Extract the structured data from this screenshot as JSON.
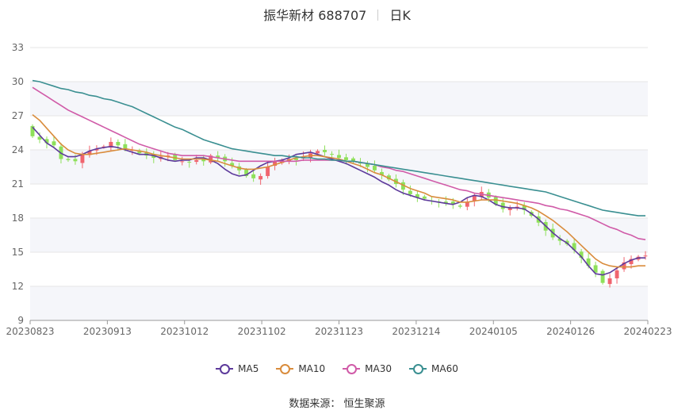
{
  "header": {
    "name_code": "振华新材 688707",
    "period": "日K"
  },
  "source": "数据来源： 恒生聚源",
  "colors": {
    "up": "#f0646e",
    "down": "#8ee05a",
    "MA5": "#5d3a9b",
    "MA10": "#d98c3c",
    "MA30": "#d05ba8",
    "MA60": "#3a8f91",
    "grid": "#e6e6e6",
    "band": "#f5f6fa"
  },
  "chart_data": {
    "type": "candlestick",
    "title": "振华新材 688707 日K",
    "ylim": [
      9,
      33
    ],
    "yticks": [
      9,
      12,
      15,
      18,
      21,
      24,
      27,
      30,
      33
    ],
    "xticks": [
      "20230823",
      "20230913",
      "20231012",
      "20231102",
      "20231123",
      "20231214",
      "20240105",
      "20240126",
      "20240223"
    ],
    "x_range": [
      "20230823",
      "20240223"
    ],
    "legend": [
      "MA5",
      "MA10",
      "MA30",
      "MA60"
    ],
    "legend_position": "bottom",
    "approx_close": [
      25.2,
      24.9,
      24.6,
      24.4,
      23.2,
      23.1,
      23.0,
      23.6,
      23.9,
      24.1,
      24.3,
      24.7,
      24.4,
      24.1,
      24.0,
      23.7,
      23.5,
      23.3,
      23.4,
      23.5,
      23.1,
      23.0,
      22.9,
      23.1,
      23.0,
      23.5,
      23.3,
      23.0,
      22.6,
      22.2,
      21.7,
      21.5,
      21.7,
      22.5,
      23.0,
      23.1,
      23.2,
      23.1,
      23.4,
      23.7,
      23.9,
      23.8,
      23.6,
      23.3,
      23.1,
      23.0,
      22.8,
      22.5,
      22.2,
      21.8,
      21.4,
      21.0,
      20.5,
      20.1,
      19.8,
      19.7,
      19.5,
      19.4,
      19.3,
      19.2,
      19.0,
      19.4,
      20.0,
      20.3,
      19.8,
      19.2,
      18.8,
      18.9,
      19.0,
      18.7,
      18.2,
      17.6,
      16.9,
      16.3,
      16.0,
      15.7,
      15.2,
      14.5,
      13.8,
      13.2,
      12.3,
      12.7,
      13.4,
      14.1,
      14.4,
      14.6,
      14.7
    ],
    "series": [
      {
        "name": "MA5",
        "values": [
          26.0,
          25.3,
          24.6,
          24.2,
          23.7,
          23.4,
          23.4,
          23.6,
          23.9,
          24.1,
          24.2,
          24.3,
          24.2,
          24.0,
          23.8,
          23.6,
          23.6,
          23.5,
          23.3,
          23.1,
          23.0,
          23.1,
          23.1,
          23.3,
          23.3,
          23.1,
          22.8,
          22.3,
          21.9,
          21.7,
          21.8,
          22.2,
          22.6,
          22.9,
          23.0,
          23.1,
          23.3,
          23.6,
          23.7,
          23.8,
          23.6,
          23.4,
          23.2,
          23.0,
          22.8,
          22.5,
          22.2,
          21.9,
          21.6,
          21.2,
          20.9,
          20.5,
          20.2,
          20.0,
          19.8,
          19.6,
          19.5,
          19.4,
          19.3,
          19.2,
          19.4,
          19.8,
          20.0,
          19.9,
          19.6,
          19.2,
          19.0,
          18.9,
          18.9,
          18.8,
          18.4,
          17.9,
          17.3,
          16.7,
          16.2,
          15.8,
          15.2,
          14.6,
          13.8,
          13.1,
          13.0,
          13.2,
          13.6,
          14.0,
          14.3,
          14.5,
          14.5
        ]
      },
      {
        "name": "MA10",
        "values": [
          27.1,
          26.6,
          25.9,
          25.2,
          24.5,
          24.0,
          23.7,
          23.6,
          23.6,
          23.7,
          23.8,
          23.9,
          24.0,
          24.1,
          24.0,
          23.9,
          23.8,
          23.6,
          23.5,
          23.4,
          23.3,
          23.2,
          23.2,
          23.2,
          23.2,
          23.1,
          23.0,
          22.8,
          22.6,
          22.4,
          22.3,
          22.3,
          22.4,
          22.5,
          22.7,
          22.9,
          23.1,
          23.3,
          23.4,
          23.5,
          23.5,
          23.4,
          23.3,
          23.2,
          23.0,
          22.8,
          22.6,
          22.3,
          22.0,
          21.8,
          21.5,
          21.2,
          20.9,
          20.6,
          20.4,
          20.2,
          19.9,
          19.8,
          19.7,
          19.6,
          19.4,
          19.4,
          19.5,
          19.6,
          19.6,
          19.6,
          19.5,
          19.4,
          19.3,
          19.1,
          18.9,
          18.6,
          18.2,
          17.8,
          17.3,
          16.8,
          16.2,
          15.6,
          15.0,
          14.4,
          14.0,
          13.8,
          13.7,
          13.7,
          13.7,
          13.8,
          13.8
        ]
      },
      {
        "name": "MA30",
        "values": [
          29.5,
          29.1,
          28.7,
          28.3,
          27.9,
          27.5,
          27.2,
          26.9,
          26.6,
          26.3,
          26.0,
          25.7,
          25.4,
          25.1,
          24.8,
          24.5,
          24.3,
          24.1,
          23.9,
          23.7,
          23.6,
          23.5,
          23.5,
          23.5,
          23.5,
          23.4,
          23.3,
          23.2,
          23.1,
          23.0,
          23.0,
          23.0,
          23.0,
          23.0,
          23.0,
          23.0,
          23.0,
          23.0,
          23.1,
          23.1,
          23.1,
          23.1,
          23.1,
          23.1,
          23.0,
          23.0,
          22.9,
          22.8,
          22.7,
          22.5,
          22.4,
          22.2,
          22.1,
          21.9,
          21.7,
          21.5,
          21.3,
          21.1,
          20.9,
          20.7,
          20.5,
          20.4,
          20.2,
          20.1,
          20.0,
          19.9,
          19.8,
          19.7,
          19.6,
          19.5,
          19.4,
          19.3,
          19.1,
          19.0,
          18.8,
          18.7,
          18.5,
          18.3,
          18.1,
          17.8,
          17.5,
          17.2,
          17.0,
          16.7,
          16.5,
          16.2,
          16.1
        ]
      },
      {
        "name": "MA60",
        "values": [
          30.1,
          30.0,
          29.8,
          29.6,
          29.4,
          29.3,
          29.1,
          29.0,
          28.8,
          28.7,
          28.5,
          28.4,
          28.2,
          28.0,
          27.8,
          27.5,
          27.2,
          26.9,
          26.6,
          26.3,
          26.0,
          25.8,
          25.5,
          25.2,
          24.9,
          24.7,
          24.5,
          24.3,
          24.1,
          24.0,
          23.9,
          23.8,
          23.7,
          23.6,
          23.5,
          23.5,
          23.4,
          23.4,
          23.3,
          23.3,
          23.2,
          23.2,
          23.1,
          23.1,
          23.0,
          23.0,
          22.9,
          22.8,
          22.7,
          22.6,
          22.5,
          22.4,
          22.3,
          22.2,
          22.1,
          22.0,
          21.9,
          21.8,
          21.7,
          21.6,
          21.5,
          21.4,
          21.3,
          21.2,
          21.1,
          21.0,
          20.9,
          20.8,
          20.7,
          20.6,
          20.5,
          20.4,
          20.3,
          20.1,
          19.9,
          19.7,
          19.5,
          19.3,
          19.1,
          18.9,
          18.7,
          18.6,
          18.5,
          18.4,
          18.3,
          18.2,
          18.2
        ]
      }
    ]
  }
}
